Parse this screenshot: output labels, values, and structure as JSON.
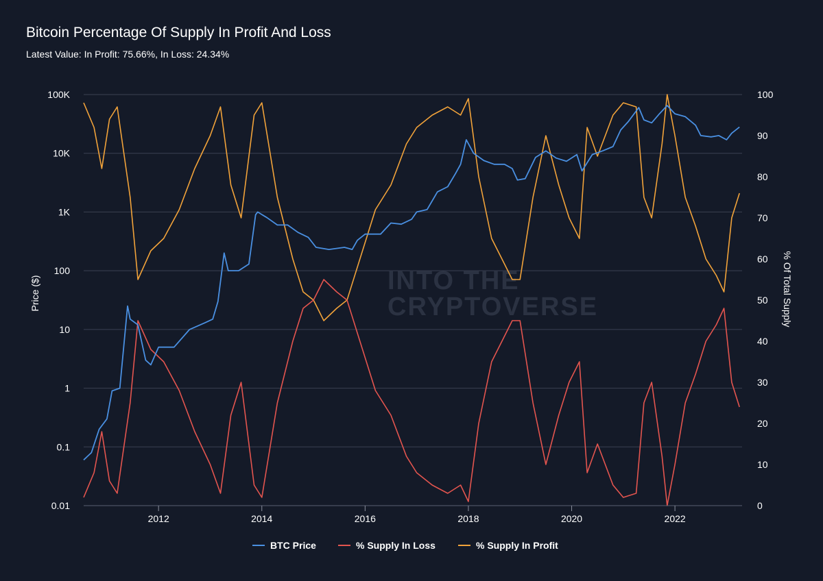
{
  "chart_data": {
    "type": "line",
    "title": "Bitcoin Percentage Of Supply In Profit And Loss",
    "subtitle": "Latest Value: In Profit: 75.66%, In Loss: 24.34%",
    "watermark": [
      "INTO THE",
      "CRYPTOVERSE"
    ],
    "xlim": [
      2010.55,
      2023.3
    ],
    "x_ticks": [
      2012,
      2014,
      2016,
      2018,
      2020,
      2022
    ],
    "y_left": {
      "label": "Price ($)",
      "scale": "log",
      "lim": [
        0.01,
        100000
      ],
      "ticks": [
        0.01,
        0.1,
        1,
        10,
        100,
        1000,
        10000,
        100000
      ],
      "tick_labels": [
        "0.01",
        "0.1",
        "1",
        "10",
        "100",
        "1K",
        "10K",
        "100K"
      ]
    },
    "y_right": {
      "label": "% Of Total Supply",
      "lim": [
        0,
        100
      ],
      "ticks": [
        0,
        10,
        20,
        30,
        40,
        50,
        60,
        70,
        80,
        90,
        100
      ]
    },
    "grid": true,
    "legend_position": "bottom-center",
    "series": [
      {
        "name": "BTC Price",
        "color": "#4a90e2",
        "axis": "left",
        "x": [
          2010.55,
          2010.7,
          2010.85,
          2011.0,
          2011.1,
          2011.25,
          2011.4,
          2011.45,
          2011.6,
          2011.75,
          2011.85,
          2012.0,
          2012.3,
          2012.6,
          2012.9,
          2013.05,
          2013.15,
          2013.27,
          2013.35,
          2013.55,
          2013.75,
          2013.88,
          2013.92,
          2014.1,
          2014.3,
          2014.5,
          2014.7,
          2014.9,
          2015.05,
          2015.3,
          2015.6,
          2015.75,
          2015.85,
          2016.0,
          2016.3,
          2016.5,
          2016.7,
          2016.9,
          2017.0,
          2017.2,
          2017.4,
          2017.6,
          2017.75,
          2017.85,
          2017.96,
          2018.1,
          2018.3,
          2018.5,
          2018.7,
          2018.85,
          2018.95,
          2019.1,
          2019.3,
          2019.5,
          2019.7,
          2019.9,
          2020.1,
          2020.2,
          2020.4,
          2020.6,
          2020.8,
          2020.95,
          2021.1,
          2021.3,
          2021.4,
          2021.55,
          2021.7,
          2021.85,
          2022.0,
          2022.2,
          2022.4,
          2022.5,
          2022.7,
          2022.85,
          2023.0,
          2023.1,
          2023.25
        ],
        "values": [
          0.06,
          0.08,
          0.2,
          0.3,
          0.9,
          1,
          25,
          15,
          12,
          3,
          2.5,
          5,
          5,
          10,
          13,
          15,
          30,
          200,
          100,
          100,
          130,
          900,
          1000,
          800,
          600,
          600,
          450,
          370,
          250,
          230,
          250,
          230,
          330,
          420,
          420,
          650,
          620,
          750,
          1000,
          1100,
          2200,
          2700,
          4500,
          6500,
          17000,
          10000,
          7500,
          6500,
          6500,
          5500,
          3500,
          3700,
          8500,
          11000,
          8300,
          7300,
          9500,
          5000,
          9500,
          11000,
          13000,
          25000,
          35000,
          60000,
          37000,
          33000,
          47000,
          65000,
          47000,
          42000,
          30000,
          20000,
          19000,
          20000,
          17000,
          22000,
          28000
        ]
      },
      {
        "name": "% Supply In Loss",
        "color": "#e4554f",
        "axis": "right",
        "x": [
          2010.55,
          2010.75,
          2010.9,
          2011.05,
          2011.2,
          2011.45,
          2011.6,
          2011.85,
          2012.1,
          2012.4,
          2012.7,
          2013.0,
          2013.2,
          2013.4,
          2013.6,
          2013.85,
          2014.0,
          2014.3,
          2014.6,
          2014.8,
          2015.0,
          2015.2,
          2015.45,
          2015.65,
          2015.9,
          2016.2,
          2016.5,
          2016.8,
          2017.0,
          2017.3,
          2017.6,
          2017.85,
          2018.0,
          2018.2,
          2018.45,
          2018.65,
          2018.85,
          2019.0,
          2019.25,
          2019.5,
          2019.75,
          2019.95,
          2020.15,
          2020.3,
          2020.5,
          2020.8,
          2021.0,
          2021.25,
          2021.4,
          2021.55,
          2021.75,
          2021.85,
          2022.0,
          2022.2,
          2022.4,
          2022.6,
          2022.8,
          2022.95,
          2023.1,
          2023.25
        ],
        "values": [
          2,
          8,
          18,
          6,
          3,
          25,
          45,
          38,
          35,
          28,
          18,
          10,
          3,
          22,
          30,
          5,
          2,
          25,
          40,
          48,
          50,
          55,
          52,
          50,
          40,
          28,
          22,
          12,
          8,
          5,
          3,
          5,
          1,
          20,
          35,
          40,
          45,
          45,
          25,
          10,
          22,
          30,
          35,
          8,
          15,
          5,
          2,
          3,
          25,
          30,
          12,
          0,
          10,
          25,
          32,
          40,
          44,
          48,
          30,
          24
        ]
      },
      {
        "name": "% Supply In Profit",
        "color": "#f2a33a",
        "axis": "right",
        "x": [
          2010.55,
          2010.75,
          2010.9,
          2011.05,
          2011.2,
          2011.45,
          2011.6,
          2011.85,
          2012.1,
          2012.4,
          2012.7,
          2013.0,
          2013.2,
          2013.4,
          2013.6,
          2013.85,
          2014.0,
          2014.3,
          2014.6,
          2014.8,
          2015.0,
          2015.2,
          2015.45,
          2015.65,
          2015.9,
          2016.2,
          2016.5,
          2016.8,
          2017.0,
          2017.3,
          2017.6,
          2017.85,
          2018.0,
          2018.2,
          2018.45,
          2018.65,
          2018.85,
          2019.0,
          2019.25,
          2019.5,
          2019.75,
          2019.95,
          2020.15,
          2020.3,
          2020.5,
          2020.8,
          2021.0,
          2021.25,
          2021.4,
          2021.55,
          2021.75,
          2021.85,
          2022.0,
          2022.2,
          2022.4,
          2022.6,
          2022.8,
          2022.95,
          2023.1,
          2023.25
        ],
        "values": [
          98,
          92,
          82,
          94,
          97,
          75,
          55,
          62,
          65,
          72,
          82,
          90,
          97,
          78,
          70,
          95,
          98,
          75,
          60,
          52,
          50,
          45,
          48,
          50,
          60,
          72,
          78,
          88,
          92,
          95,
          97,
          95,
          99,
          80,
          65,
          60,
          55,
          55,
          75,
          90,
          78,
          70,
          65,
          92,
          85,
          95,
          98,
          97,
          75,
          70,
          88,
          100,
          90,
          75,
          68,
          60,
          56,
          52,
          70,
          76
        ]
      }
    ]
  }
}
